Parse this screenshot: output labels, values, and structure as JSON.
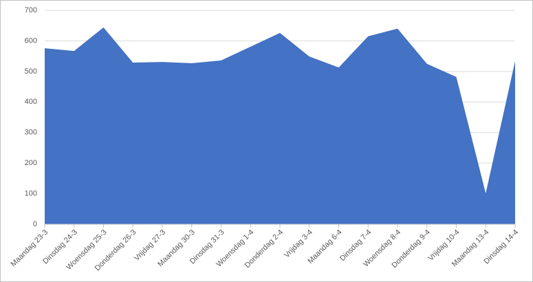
{
  "chart_data": {
    "type": "area",
    "categories": [
      "Maandag 23-3",
      "Dinsdag 24-3",
      "Woensdag 25-3",
      "Donderdag 26-3",
      "Vrijdag 27-3",
      "Maandag 30-3",
      "Dinsdag 31-3",
      "Woensdag 1-4",
      "Donderdag 2-4",
      "Vrijdag 3-4",
      "Maandag 6-4",
      "Dinsdag 7-4",
      "Woensdag 8-4",
      "Donderdag 9-4",
      "Vrijdag 10-4",
      "Maandag 13-4",
      "Dinsdag 14-4"
    ],
    "values": [
      576,
      567,
      644,
      529,
      531,
      527,
      536,
      581,
      626,
      549,
      513,
      615,
      640,
      525,
      482,
      101,
      534
    ],
    "color": "#4472c4",
    "ylim": [
      0,
      700
    ],
    "yticks": [
      0,
      100,
      200,
      300,
      400,
      500,
      600,
      700
    ],
    "grid": true
  }
}
